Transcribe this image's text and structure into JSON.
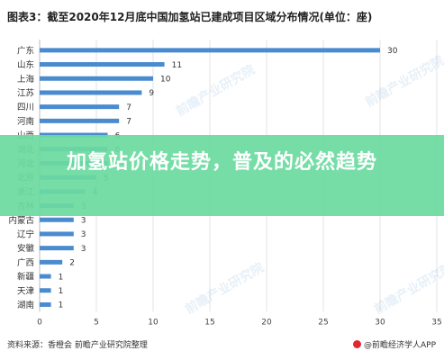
{
  "title": "图表3：截至2020年12月底中国加氢站已建成项目区域分布情况(单位：座)",
  "source": "资料来源：香橙会 前瞻产业研究院整理",
  "brand": "@前瞻经济学人APP",
  "banner": "加氢站价格走势，普及的必然趋势",
  "watermark": "前瞻产业研究院",
  "colors": {
    "bar": "#4a8bd0",
    "banner": "#6cdaa0",
    "brand": "#e0282e"
  },
  "chart_data": {
    "type": "bar",
    "orientation": "horizontal",
    "categories": [
      "广东",
      "山东",
      "上海",
      "江苏",
      "四川",
      "河南",
      "山西",
      "湖北",
      "河北",
      "北京",
      "浙江",
      "吉林",
      "内蒙古",
      "辽宁",
      "安徽",
      "广西",
      "新疆",
      "天津",
      "湖南"
    ],
    "values": [
      30,
      11,
      10,
      9,
      7,
      7,
      6,
      6,
      6,
      5,
      4,
      3,
      3,
      3,
      3,
      2,
      1,
      1,
      1
    ],
    "xlim": [
      0,
      35
    ],
    "xticks": [
      0,
      5,
      10,
      15,
      20,
      25,
      30,
      35
    ],
    "grid": true,
    "legend": "none"
  }
}
